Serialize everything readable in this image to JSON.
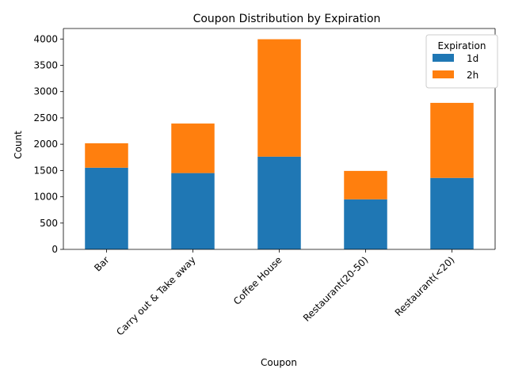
{
  "chart_data": {
    "type": "bar",
    "stacked": true,
    "title": "Coupon Distribution by Expiration",
    "xlabel": "Coupon",
    "ylabel": "Count",
    "categories": [
      "Bar",
      "Carry out & Take away",
      "Coffee House",
      "Restaurant(20-50)",
      "Restaurant(<20)"
    ],
    "series": [
      {
        "name": "1d",
        "values": [
          1553,
          1451,
          1763,
          952,
          1359
        ],
        "color": "#1f77b4"
      },
      {
        "name": "2h",
        "values": [
          464,
          942,
          2233,
          540,
          1427
        ],
        "color": "#ff7f0e"
      }
    ],
    "ylim": [
      0,
      4200
    ],
    "yticks": [
      0,
      500,
      1000,
      1500,
      2000,
      2500,
      3000,
      3500,
      4000
    ],
    "grid": false,
    "legend": {
      "title": "Expiration",
      "position": "top-right"
    }
  }
}
